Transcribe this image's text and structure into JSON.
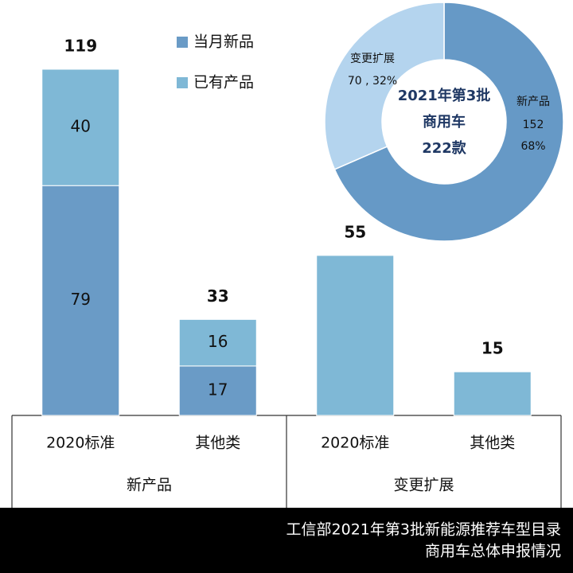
{
  "chart_data": [
    {
      "type": "bar",
      "stacked": true,
      "groups": [
        {
          "name": "新产品",
          "categories": [
            "2020标准",
            "其他类"
          ]
        },
        {
          "name": "变更扩展",
          "categories": [
            "2020标准",
            "其他类"
          ]
        }
      ],
      "series": [
        {
          "name": "当月新品",
          "color": "#6a9bc6",
          "values": [
            79,
            17,
            null,
            null
          ]
        },
        {
          "name": "已有产品",
          "color": "#7fb8d6",
          "values": [
            40,
            16,
            55,
            15
          ]
        }
      ],
      "totals": [
        119,
        33,
        55,
        15
      ]
    },
    {
      "type": "pie",
      "donut": true,
      "center_text": [
        "2021年第3批",
        "商用车",
        "222款"
      ],
      "categories": [
        "新产品",
        "变更扩展"
      ],
      "values": [
        152,
        70
      ],
      "percents": [
        68,
        32
      ],
      "percent_labels": [
        "68%",
        "32%"
      ],
      "label_separator": " , ",
      "colors": [
        "#6699c6",
        "#b4d4ee"
      ]
    }
  ],
  "footer": {
    "lines": [
      "工信部2021年第3批新能源推荐车型目录",
      "商用车总体申报情况"
    ]
  }
}
